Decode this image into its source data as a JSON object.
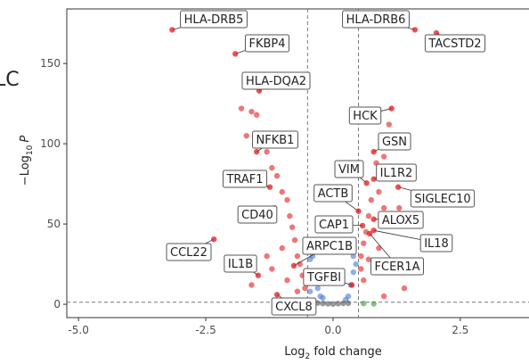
{
  "chart_data": {
    "type": "scatter",
    "panel_tag": "LC",
    "xlabel": [
      "Log",
      "2",
      " fold change"
    ],
    "ylabel": [
      "−Log",
      "10",
      "P"
    ],
    "xlim": [
      -5.23,
      3.85
    ],
    "ylim": [
      -8.3,
      184
    ],
    "xticks": [
      {
        "value": -5,
        "label": "-5.0"
      },
      {
        "value": -2.5,
        "label": "-2.5"
      },
      {
        "value": 0,
        "label": "0.0"
      },
      {
        "value": 2.5,
        "label": "2.5"
      }
    ],
    "yticks": [
      0,
      50,
      100,
      150
    ],
    "fc_cutoffs": [
      -0.5,
      0.5
    ],
    "p_cutoff": 1.3,
    "series": [
      {
        "color": "#e41a1c",
        "x": [
          -1.6,
          -1.7,
          -1.3,
          -1.2,
          -1.1,
          -1.0,
          -0.9,
          -1.15,
          -0.85,
          -0.8,
          -0.75,
          -1.0,
          -0.7,
          -0.65,
          -1.3,
          -0.6,
          -0.9,
          -1.8,
          -1.5,
          -0.55,
          -1.6,
          -0.7,
          -1.2,
          1.1,
          0.95,
          1.0,
          0.85,
          1.2,
          0.9,
          0.75,
          1.0,
          0.7,
          0.65,
          0.6,
          0.55,
          0.9,
          1.1,
          0.8,
          0.6,
          1.4,
          1.0,
          0.7,
          1.3,
          0.55
        ],
        "y": [
          120,
          105,
          95,
          85,
          80,
          70,
          65,
          60,
          55,
          48,
          40,
          35,
          30,
          25,
          30,
          18,
          15,
          122,
          118,
          10,
          12,
          8,
          22,
          112,
          100,
          92,
          88,
          80,
          70,
          65,
          60,
          55,
          45,
          38,
          30,
          35,
          25,
          20,
          15,
          10,
          5,
          28,
          60,
          22
        ]
      },
      {
        "color": "#4a78d6",
        "x": [
          -0.45,
          -0.4,
          -0.35,
          -0.3,
          -0.45,
          -0.25,
          0.3,
          0.35,
          0.4,
          0.45,
          0.4,
          -0.2,
          0.25,
          -0.4
        ],
        "y": [
          28,
          20,
          15,
          10,
          8,
          5,
          5,
          12,
          20,
          25,
          30,
          4,
          3,
          30
        ]
      },
      {
        "color": "#555555",
        "x": [
          -0.2,
          -0.1,
          0,
          0.1,
          0.2,
          -0.3,
          0.3
        ],
        "y": [
          0.5,
          0.3,
          0.2,
          0.4,
          0.6,
          0.8,
          0.7
        ]
      },
      {
        "color": "#2ca02c",
        "x": [
          0.6,
          0.8,
          -0.6
        ],
        "y": [
          0.5,
          0.3,
          0.4
        ]
      }
    ],
    "labeled": {
      "color": "#e41a1c",
      "genes": [
        "HLA-DRB5",
        "HLA-DRB6",
        "TACSTD2",
        "FKBP4",
        "HLA-DQA2",
        "HCK",
        "GSN",
        "NFKB1",
        "VIM",
        "IL1R2",
        "TRAF1",
        "ACTB",
        "SIGLEC10",
        "CD40",
        "ALOX5",
        "CAP1",
        "IL18",
        "CCL22",
        "ARPC1B",
        "IL1B",
        "FCER1A",
        "TGFBI",
        "CXCL8"
      ],
      "x": [
        -3.16,
        1.61,
        2.03,
        -1.92,
        -1.45,
        1.15,
        0.8,
        -1.5,
        0.66,
        0.8,
        -1.24,
        0.5,
        1.28,
        -1.29,
        0.8,
        0.58,
        0.8,
        -2.34,
        -0.77,
        -1.47,
        0.72,
        0.37,
        -1.1
      ],
      "y": [
        171,
        171,
        169,
        156,
        133,
        122,
        95,
        95,
        75.5,
        78,
        73,
        58,
        73,
        52,
        53,
        49,
        46,
        40.5,
        24,
        18,
        44,
        12,
        6
      ]
    }
  }
}
